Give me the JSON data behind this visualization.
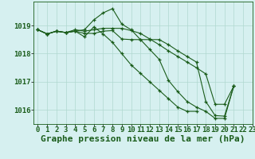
{
  "background_color": "#d6f0f0",
  "grid_color": "#b0d8d0",
  "line_color": "#1a5c1a",
  "marker_color": "#1a5c1a",
  "xlabel_text": "Graphe pression niveau de la mer (hPa)",
  "xlim": [
    -0.5,
    23
  ],
  "ylim": [
    1015.5,
    1019.85
  ],
  "yticks": [
    1016,
    1017,
    1018,
    1019
  ],
  "xticks": [
    0,
    1,
    2,
    3,
    4,
    5,
    6,
    7,
    8,
    9,
    10,
    11,
    12,
    13,
    14,
    15,
    16,
    17,
    18,
    19,
    20,
    21,
    22,
    23
  ],
  "series": [
    {
      "x": [
        0,
        1,
        2,
        3,
        4,
        5,
        6,
        7,
        8,
        9,
        10,
        11,
        12,
        13,
        14,
        15,
        16,
        17,
        18,
        19,
        20,
        21
      ],
      "y": [
        1018.85,
        1018.7,
        1018.8,
        1018.75,
        1018.8,
        1018.85,
        1019.2,
        1019.45,
        1019.6,
        1019.05,
        1018.85,
        1018.5,
        1018.15,
        1017.8,
        1017.05,
        1016.65,
        1016.3,
        1016.1,
        1015.95,
        1015.7,
        1015.7,
        1016.85
      ]
    },
    {
      "x": [
        0,
        1,
        2,
        3,
        4,
        5,
        6,
        7,
        8,
        9,
        10,
        11,
        12,
        13,
        14,
        15,
        16,
        17
      ],
      "y": [
        1018.85,
        1018.7,
        1018.8,
        1018.75,
        1018.8,
        1018.6,
        1018.95,
        1018.7,
        1018.4,
        1018.0,
        1017.6,
        1017.3,
        1017.0,
        1016.7,
        1016.4,
        1016.1,
        1015.95,
        1015.95
      ]
    },
    {
      "x": [
        0,
        1,
        2,
        3,
        4,
        5,
        6,
        7,
        8,
        9,
        10,
        11,
        12,
        13,
        14,
        15,
        16,
        17,
        18,
        19,
        20,
        21
      ],
      "y": [
        1018.85,
        1018.7,
        1018.8,
        1018.75,
        1018.85,
        1018.8,
        1018.85,
        1018.9,
        1018.9,
        1018.9,
        1018.82,
        1018.72,
        1018.52,
        1018.32,
        1018.1,
        1017.9,
        1017.7,
        1017.5,
        1017.28,
        1016.2,
        1016.2,
        1016.85
      ]
    },
    {
      "x": [
        0,
        1,
        2,
        3,
        4,
        5,
        6,
        7,
        8,
        9,
        10,
        11,
        12,
        13,
        14,
        15,
        16,
        17,
        18,
        19,
        20,
        21
      ],
      "y": [
        1018.85,
        1018.7,
        1018.8,
        1018.75,
        1018.8,
        1018.72,
        1018.72,
        1018.8,
        1018.82,
        1018.52,
        1018.5,
        1018.5,
        1018.5,
        1018.5,
        1018.32,
        1018.1,
        1017.9,
        1017.7,
        1016.3,
        1015.8,
        1015.78,
        1016.85
      ]
    }
  ],
  "xlabel_fontsize": 8,
  "tick_fontsize": 6.5
}
